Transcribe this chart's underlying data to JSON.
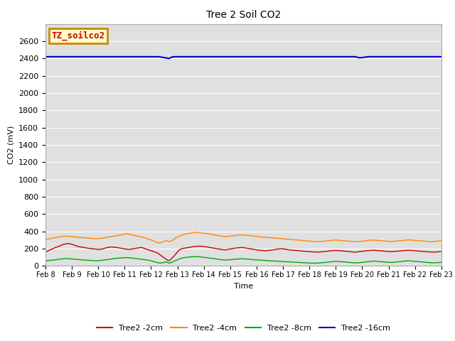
{
  "title": "Tree 2 Soil CO2",
  "ylabel": "CO2 (mV)",
  "xlabel": "Time",
  "ylim": [
    0,
    2800
  ],
  "yticks": [
    0,
    200,
    400,
    600,
    800,
    1000,
    1200,
    1400,
    1600,
    1800,
    2000,
    2200,
    2400,
    2600
  ],
  "xtick_labels": [
    "Feb 8",
    "Feb 9",
    "Feb 10",
    "Feb 11",
    "Feb 12",
    "Feb 13",
    "Feb 14",
    "Feb 15",
    "Feb 16",
    "Feb 17",
    "Feb 18",
    "Feb 19",
    "Feb 20",
    "Feb 21",
    "Feb 22",
    "Feb 23"
  ],
  "bg_color": "#e0e0e0",
  "grid_color": "#ffffff",
  "annotation_label": "TZ_soilco2",
  "annotation_bg": "#ffffcc",
  "annotation_border": "#cc8800",
  "annotation_text_color": "#cc0000",
  "legend_labels": [
    "Tree2 -2cm",
    "Tree2 -4cm",
    "Tree2 -8cm",
    "Tree2 -16cm"
  ],
  "series": {
    "Tree2 -2cm": {
      "color": "#cc0000",
      "lw": 1.0,
      "values": [
        160,
        175,
        190,
        200,
        215,
        225,
        235,
        250,
        255,
        260,
        255,
        245,
        235,
        225,
        220,
        215,
        210,
        205,
        200,
        198,
        195,
        190,
        195,
        200,
        210,
        215,
        220,
        218,
        215,
        210,
        205,
        200,
        195,
        190,
        195,
        200,
        205,
        210,
        215,
        205,
        195,
        185,
        175,
        165,
        155,
        140,
        115,
        95,
        75,
        60,
        85,
        115,
        150,
        185,
        200,
        205,
        210,
        215,
        220,
        225,
        228,
        230,
        228,
        225,
        220,
        215,
        210,
        205,
        200,
        195,
        190,
        185,
        190,
        195,
        200,
        205,
        210,
        212,
        215,
        210,
        205,
        200,
        195,
        190,
        185,
        182,
        180,
        175,
        178,
        182,
        185,
        190,
        195,
        200,
        198,
        195,
        190,
        185,
        183,
        180,
        178,
        175,
        172,
        170,
        168,
        165,
        163,
        162,
        160,
        163,
        165,
        168,
        172,
        175,
        178,
        180,
        178,
        175,
        173,
        170,
        168,
        165,
        162,
        160,
        165,
        168,
        172,
        175,
        178,
        180,
        182,
        180,
        178,
        175,
        173,
        170,
        168,
        165,
        168,
        170,
        172,
        175,
        178,
        180,
        182,
        180,
        178,
        175,
        172,
        170,
        168,
        165,
        163,
        162,
        160,
        162,
        165,
        168
      ]
    },
    "Tree2 -4cm": {
      "color": "#ff8800",
      "lw": 1.0,
      "values": [
        305,
        310,
        318,
        325,
        330,
        335,
        338,
        342,
        345,
        343,
        340,
        338,
        335,
        332,
        330,
        328,
        325,
        322,
        320,
        318,
        315,
        318,
        320,
        325,
        330,
        335,
        340,
        345,
        350,
        355,
        360,
        368,
        372,
        368,
        362,
        355,
        348,
        342,
        335,
        328,
        320,
        310,
        300,
        288,
        275,
        265,
        275,
        285,
        295,
        280,
        290,
        310,
        330,
        345,
        358,
        365,
        372,
        378,
        382,
        386,
        388,
        385,
        382,
        378,
        375,
        370,
        365,
        360,
        355,
        350,
        345,
        340,
        342,
        345,
        348,
        352,
        355,
        358,
        360,
        358,
        355,
        352,
        348,
        345,
        340,
        338,
        335,
        332,
        330,
        328,
        325,
        323,
        320,
        318,
        315,
        312,
        310,
        308,
        305,
        302,
        300,
        298,
        295,
        292,
        290,
        288,
        285,
        283,
        280,
        283,
        285,
        288,
        292,
        295,
        298,
        300,
        298,
        295,
        292,
        290,
        288,
        285,
        283,
        280,
        282,
        285,
        288,
        292,
        295,
        298,
        300,
        298,
        295,
        292,
        290,
        288,
        285,
        283,
        285,
        288,
        290,
        293,
        296,
        299,
        302,
        300,
        298,
        295,
        292,
        290,
        288,
        285,
        283,
        280,
        282,
        285,
        290,
        295
      ]
    },
    "Tree2 -8cm": {
      "color": "#00aa00",
      "lw": 1.0,
      "values": [
        58,
        62,
        65,
        68,
        72,
        76,
        80,
        83,
        85,
        84,
        82,
        80,
        78,
        75,
        72,
        70,
        68,
        66,
        64,
        62,
        60,
        62,
        64,
        68,
        72,
        76,
        80,
        85,
        88,
        90,
        92,
        95,
        98,
        95,
        92,
        88,
        85,
        82,
        78,
        74,
        70,
        65,
        58,
        50,
        42,
        35,
        36,
        40,
        48,
        32,
        42,
        55,
        68,
        80,
        90,
        96,
        100,
        104,
        106,
        108,
        107,
        105,
        103,
        100,
        96,
        92,
        88,
        84,
        80,
        76,
        72,
        68,
        70,
        72,
        75,
        78,
        80,
        82,
        84,
        82,
        80,
        78,
        75,
        72,
        70,
        68,
        66,
        64,
        62,
        60,
        58,
        57,
        55,
        53,
        51,
        50,
        48,
        47,
        45,
        43,
        42,
        40,
        38,
        37,
        35,
        34,
        33,
        32,
        34,
        36,
        38,
        41,
        44,
        48,
        51,
        54,
        52,
        50,
        48,
        45,
        43,
        40,
        38,
        36,
        37,
        40,
        43,
        46,
        50,
        54,
        57,
        55,
        52,
        50,
        48,
        45,
        43,
        40,
        43,
        46,
        48,
        52,
        55,
        58,
        60,
        58,
        55,
        52,
        50,
        48,
        45,
        42,
        40,
        38,
        36,
        38,
        40,
        42
      ]
    },
    "Tree2 -16cm": {
      "color": "#0000cc",
      "lw": 1.5,
      "values": [
        2420,
        2420,
        2420,
        2420,
        2420,
        2420,
        2420,
        2420,
        2420,
        2420,
        2420,
        2420,
        2420,
        2420,
        2420,
        2420,
        2420,
        2420,
        2420,
        2420,
        2420,
        2420,
        2420,
        2420,
        2420,
        2420,
        2420,
        2420,
        2420,
        2420,
        2420,
        2420,
        2420,
        2420,
        2420,
        2420,
        2420,
        2420,
        2420,
        2420,
        2420,
        2420,
        2420,
        2420,
        2420,
        2420,
        2415,
        2410,
        2405,
        2400,
        2415,
        2420,
        2420,
        2420,
        2420,
        2420,
        2420,
        2420,
        2420,
        2420,
        2420,
        2420,
        2420,
        2420,
        2420,
        2420,
        2420,
        2420,
        2420,
        2420,
        2420,
        2420,
        2420,
        2420,
        2420,
        2420,
        2420,
        2420,
        2420,
        2420,
        2420,
        2420,
        2420,
        2420,
        2420,
        2420,
        2420,
        2420,
        2420,
        2420,
        2420,
        2420,
        2420,
        2420,
        2420,
        2420,
        2420,
        2420,
        2420,
        2420,
        2420,
        2420,
        2420,
        2420,
        2420,
        2420,
        2420,
        2420,
        2420,
        2420,
        2420,
        2420,
        2420,
        2420,
        2420,
        2420,
        2420,
        2420,
        2420,
        2420,
        2420,
        2420,
        2420,
        2420,
        2410,
        2408,
        2412,
        2416,
        2420,
        2420,
        2420,
        2420,
        2420,
        2420,
        2420,
        2420,
        2420,
        2420,
        2420,
        2420,
        2420,
        2420,
        2420,
        2420,
        2420,
        2420,
        2420,
        2420,
        2420,
        2420,
        2420,
        2420,
        2420,
        2420,
        2420,
        2420,
        2420,
        2420
      ]
    }
  }
}
